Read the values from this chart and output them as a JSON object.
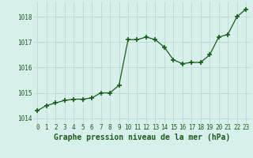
{
  "x": [
    0,
    1,
    2,
    3,
    4,
    5,
    6,
    7,
    8,
    9,
    10,
    11,
    12,
    13,
    14,
    15,
    16,
    17,
    18,
    19,
    20,
    21,
    22,
    23
  ],
  "y": [
    1014.3,
    1014.5,
    1014.6,
    1014.7,
    1014.75,
    1014.75,
    1014.8,
    1015.0,
    1015.0,
    1015.3,
    1017.1,
    1017.1,
    1017.2,
    1017.1,
    1016.8,
    1016.3,
    1016.15,
    1016.2,
    1016.2,
    1016.5,
    1017.2,
    1017.3,
    1018.0,
    1018.3
  ],
  "line_color": "#1a5c1a",
  "marker": "+",
  "marker_size": 4,
  "marker_linewidth": 1.2,
  "bg_color": "#d8f0ec",
  "grid_color": "#b8d4d0",
  "xlabel": "Graphe pression niveau de la mer (hPa)",
  "xlabel_fontsize": 7,
  "xlabel_color": "#1a5c1a",
  "tick_color": "#1a5c1a",
  "tick_fontsize": 5.5,
  "ylim": [
    1013.8,
    1018.6
  ],
  "yticks": [
    1014,
    1015,
    1016,
    1017,
    1018
  ],
  "xlim": [
    -0.5,
    23.5
  ],
  "line_width": 0.9
}
